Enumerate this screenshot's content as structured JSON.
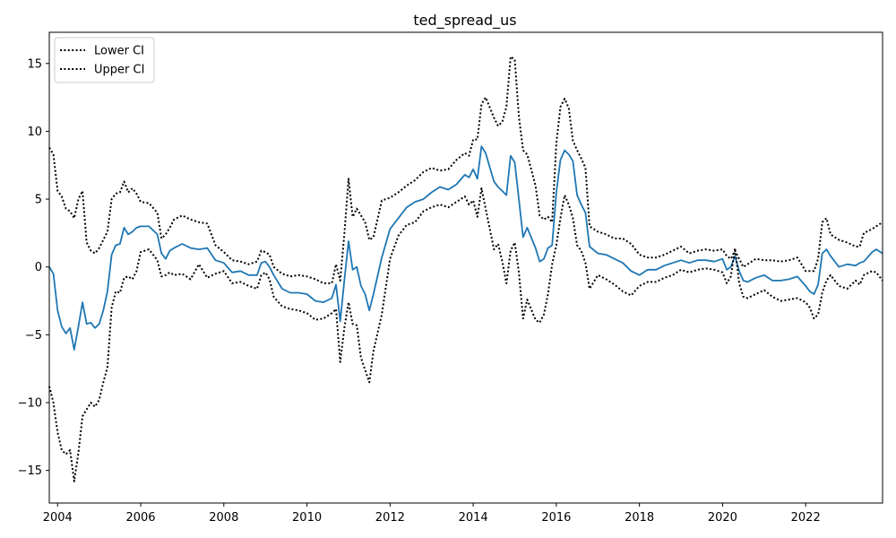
{
  "chart_data": {
    "type": "line",
    "title": "ted_spread_us",
    "xlabel": "",
    "ylabel": "",
    "xlim": [
      2003.8,
      2023.85
    ],
    "ylim": [
      -17.4,
      17.3
    ],
    "x_ticks": [
      2004,
      2006,
      2008,
      2010,
      2012,
      2014,
      2016,
      2018,
      2020,
      2022
    ],
    "x_tick_labels": [
      "2004",
      "2006",
      "2008",
      "2010",
      "2012",
      "2014",
      "2016",
      "2018",
      "2020",
      "2022"
    ],
    "y_ticks": [
      -15,
      -10,
      -5,
      0,
      5,
      10,
      15
    ],
    "y_tick_labels": [
      "−15",
      "−10",
      "−5",
      "0",
      "5",
      "10",
      "15"
    ],
    "grid": false,
    "legend_position": "top-left",
    "x": [
      2003.8,
      2003.9,
      2004.0,
      2004.1,
      2004.2,
      2004.3,
      2004.4,
      2004.5,
      2004.6,
      2004.7,
      2004.8,
      2004.9,
      2005.0,
      2005.1,
      2005.2,
      2005.3,
      2005.4,
      2005.5,
      2005.6,
      2005.7,
      2005.8,
      2005.9,
      2006.0,
      2006.2,
      2006.4,
      2006.5,
      2006.6,
      2006.7,
      2006.8,
      2007.0,
      2007.2,
      2007.4,
      2007.6,
      2007.8,
      2008.0,
      2008.2,
      2008.4,
      2008.6,
      2008.8,
      2008.9,
      2009.0,
      2009.1,
      2009.2,
      2009.4,
      2009.6,
      2009.8,
      2010.0,
      2010.2,
      2010.4,
      2010.6,
      2010.7,
      2010.8,
      2010.9,
      2011.0,
      2011.1,
      2011.2,
      2011.3,
      2011.4,
      2011.5,
      2011.6,
      2011.8,
      2012.0,
      2012.2,
      2012.4,
      2012.6,
      2012.8,
      2013.0,
      2013.2,
      2013.4,
      2013.6,
      2013.8,
      2013.9,
      2014.0,
      2014.1,
      2014.2,
      2014.3,
      2014.5,
      2014.6,
      2014.7,
      2014.8,
      2014.9,
      2015.0,
      2015.1,
      2015.2,
      2015.3,
      2015.5,
      2015.6,
      2015.7,
      2015.8,
      2015.9,
      2016.0,
      2016.1,
      2016.2,
      2016.3,
      2016.4,
      2016.5,
      2016.6,
      2016.7,
      2016.8,
      2017.0,
      2017.2,
      2017.4,
      2017.6,
      2017.8,
      2018.0,
      2018.2,
      2018.4,
      2018.6,
      2018.8,
      2019.0,
      2019.2,
      2019.4,
      2019.6,
      2019.8,
      2020.0,
      2020.1,
      2020.2,
      2020.3,
      2020.4,
      2020.5,
      2020.6,
      2020.8,
      2021.0,
      2021.2,
      2021.4,
      2021.6,
      2021.8,
      2022.0,
      2022.1,
      2022.2,
      2022.3,
      2022.4,
      2022.5,
      2022.6,
      2022.8,
      2023.0,
      2023.2,
      2023.3,
      2023.4,
      2023.6,
      2023.7,
      2023.85
    ],
    "series": [
      {
        "name": "",
        "style": "solid",
        "color": "#1f77b4",
        "values": [
          0.0,
          -0.5,
          -3.2,
          -4.4,
          -4.9,
          -4.5,
          -6.1,
          -4.4,
          -2.6,
          -4.2,
          -4.1,
          -4.5,
          -4.2,
          -3.2,
          -1.8,
          0.9,
          1.6,
          1.7,
          2.9,
          2.4,
          2.6,
          2.9,
          3.0,
          3.0,
          2.4,
          1.0,
          0.6,
          1.2,
          1.4,
          1.7,
          1.4,
          1.3,
          1.4,
          0.5,
          0.3,
          -0.4,
          -0.3,
          -0.6,
          -0.6,
          0.3,
          0.4,
          0.0,
          -0.6,
          -1.6,
          -1.9,
          -1.9,
          -2.0,
          -2.5,
          -2.6,
          -2.3,
          -1.3,
          -4.0,
          -1.0,
          1.9,
          -0.2,
          0.0,
          -1.4,
          -2.0,
          -3.2,
          -2.0,
          0.7,
          2.8,
          3.6,
          4.4,
          4.8,
          5.0,
          5.5,
          5.9,
          5.7,
          6.1,
          6.8,
          6.6,
          7.2,
          6.5,
          8.9,
          8.4,
          6.3,
          5.9,
          5.6,
          5.3,
          8.2,
          7.7,
          5.0,
          2.2,
          2.9,
          1.4,
          0.4,
          0.6,
          1.4,
          1.6,
          5.5,
          7.9,
          8.6,
          8.3,
          7.8,
          5.3,
          4.6,
          4.0,
          1.5,
          1.0,
          0.9,
          0.6,
          0.3,
          -0.3,
          -0.6,
          -0.2,
          -0.2,
          0.1,
          0.3,
          0.5,
          0.3,
          0.5,
          0.5,
          0.4,
          0.6,
          -0.2,
          0.0,
          0.8,
          -0.3,
          -1.0,
          -1.1,
          -0.8,
          -0.6,
          -1.0,
          -1.0,
          -0.9,
          -0.7,
          -1.4,
          -1.8,
          -2.0,
          -1.3,
          1.0,
          1.3,
          0.8,
          0.0,
          0.2,
          0.1,
          0.3,
          0.4,
          1.1,
          1.3,
          1.0
        ]
      },
      {
        "name": "Lower CI",
        "style": "dotted",
        "color": "#000000",
        "values": [
          -8.8,
          -10.0,
          -12.2,
          -13.5,
          -13.8,
          -13.5,
          -15.8,
          -13.7,
          -11.0,
          -10.5,
          -10.0,
          -10.3,
          -9.8,
          -8.5,
          -7.4,
          -3.0,
          -1.8,
          -1.9,
          -0.8,
          -0.7,
          -0.9,
          -0.3,
          1.1,
          1.3,
          0.5,
          -0.7,
          -0.6,
          -0.4,
          -0.6,
          -0.5,
          -0.9,
          0.2,
          -0.8,
          -0.5,
          -0.3,
          -1.2,
          -1.1,
          -1.4,
          -1.6,
          -0.6,
          -0.4,
          -0.9,
          -2.2,
          -2.9,
          -3.1,
          -3.2,
          -3.4,
          -3.9,
          -3.8,
          -3.4,
          -3.1,
          -7.0,
          -4.5,
          -2.6,
          -4.2,
          -4.3,
          -6.7,
          -7.6,
          -8.5,
          -6.2,
          -3.5,
          0.6,
          2.3,
          3.1,
          3.3,
          4.1,
          4.4,
          4.6,
          4.4,
          4.8,
          5.2,
          4.6,
          4.9,
          3.7,
          5.8,
          4.3,
          1.3,
          1.7,
          0.4,
          -1.2,
          1.2,
          1.8,
          -0.4,
          -3.8,
          -2.4,
          -3.9,
          -4.1,
          -3.5,
          -2.0,
          0.2,
          1.6,
          3.6,
          5.3,
          4.6,
          3.6,
          1.6,
          1.2,
          0.3,
          -1.6,
          -0.6,
          -0.9,
          -1.3,
          -1.8,
          -2.1,
          -1.4,
          -1.1,
          -1.1,
          -0.8,
          -0.6,
          -0.2,
          -0.4,
          -0.2,
          -0.1,
          -0.2,
          -0.4,
          -1.2,
          -0.7,
          1.4,
          -1.2,
          -2.2,
          -2.3,
          -2.0,
          -1.7,
          -2.2,
          -2.5,
          -2.4,
          -2.3,
          -2.6,
          -3.0,
          -3.8,
          -3.5,
          -1.9,
          -1.0,
          -0.6,
          -1.4,
          -1.6,
          -1.0,
          -1.3,
          -0.6,
          -0.3,
          -0.4,
          -1.0
        ]
      },
      {
        "name": "Upper CI",
        "style": "dotted",
        "color": "#000000",
        "values": [
          8.8,
          8.3,
          5.6,
          5.2,
          4.3,
          4.1,
          3.6,
          5.0,
          5.6,
          1.8,
          1.2,
          1.0,
          1.4,
          2.0,
          2.6,
          5.0,
          5.4,
          5.5,
          6.3,
          5.5,
          5.8,
          5.4,
          4.8,
          4.7,
          4.0,
          2.1,
          2.4,
          2.9,
          3.5,
          3.8,
          3.5,
          3.3,
          3.2,
          1.6,
          1.1,
          0.5,
          0.4,
          0.2,
          0.4,
          1.2,
          1.1,
          0.9,
          0.0,
          -0.5,
          -0.7,
          -0.6,
          -0.7,
          -0.9,
          -1.2,
          -1.2,
          0.2,
          -1.0,
          2.4,
          6.5,
          3.7,
          4.3,
          3.8,
          3.3,
          2.0,
          2.2,
          4.9,
          5.1,
          5.5,
          6.0,
          6.4,
          7.0,
          7.3,
          7.1,
          7.2,
          7.9,
          8.4,
          8.2,
          9.4,
          9.4,
          12.0,
          12.5,
          11.0,
          10.4,
          10.7,
          11.8,
          15.5,
          15.3,
          11.1,
          8.6,
          8.3,
          6.0,
          3.8,
          3.5,
          3.7,
          3.3,
          9.1,
          11.8,
          12.4,
          11.7,
          9.3,
          8.6,
          8.0,
          7.3,
          3.0,
          2.6,
          2.4,
          2.1,
          2.1,
          1.7,
          0.9,
          0.7,
          0.7,
          0.9,
          1.2,
          1.5,
          1.0,
          1.2,
          1.3,
          1.2,
          1.3,
          0.8,
          0.6,
          1.2,
          0.6,
          0.0,
          0.2,
          0.6,
          0.5,
          0.5,
          0.4,
          0.5,
          0.7,
          -0.3,
          -0.3,
          -0.3,
          0.6,
          3.3,
          3.6,
          2.4,
          2.0,
          1.8,
          1.5,
          1.5,
          2.5,
          2.8,
          3.0,
          3.3
        ]
      }
    ]
  }
}
